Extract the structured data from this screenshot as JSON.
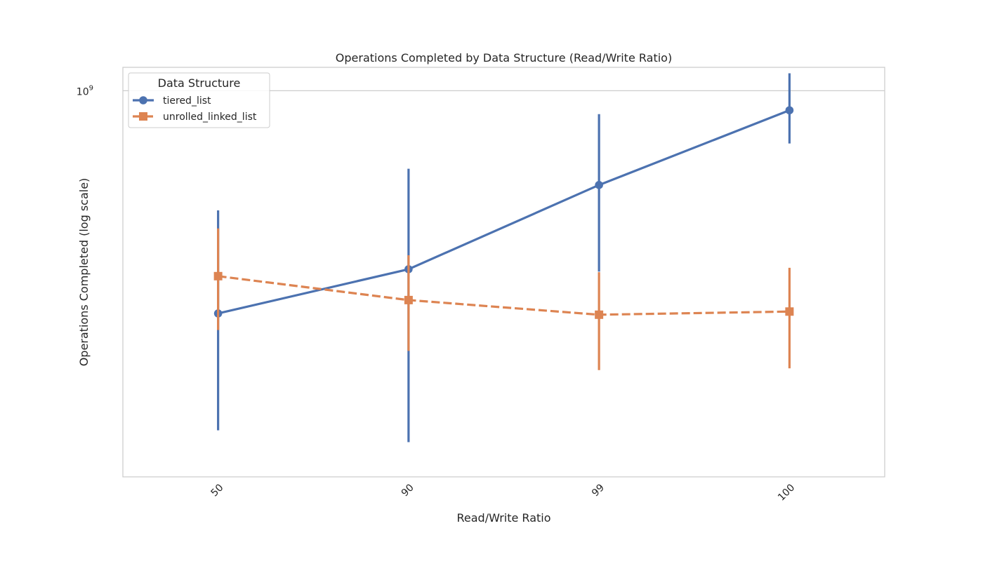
{
  "chart_data": {
    "type": "line",
    "title": "Operations Completed by Data Structure (Read/Write Ratio)",
    "xlabel": "Read/Write Ratio",
    "ylabel": "Operations Completed (log scale)",
    "x_scale": "categorical",
    "y_scale": "log",
    "categories": [
      "50",
      "90",
      "99",
      "100"
    ],
    "ylim": [
      100000000,
      1150000000
    ],
    "y_ticks": [
      {
        "value": 1000000000,
        "label": "10",
        "exponent": "9"
      }
    ],
    "grid": "y-major",
    "legend": {
      "title": "Data Structure",
      "placement": "upper-left"
    },
    "series": [
      {
        "name": "tiered_list",
        "color": "#4c72b0",
        "marker": "circle",
        "linestyle": "solid",
        "values": [
          265000000,
          345000000,
          570000000,
          890000000
        ],
        "ci_low": [
          132000000,
          123000000,
          340000000,
          730000000
        ],
        "ci_high": [
          490000000,
          628000000,
          870000000,
          1110000000
        ]
      },
      {
        "name": "unrolled_linked_list",
        "color": "#dd8452",
        "marker": "square",
        "linestyle": "dashed",
        "values": [
          331000000,
          287000000,
          263000000,
          268000000
        ],
        "ci_low": [
          240000000,
          212000000,
          189000000,
          191000000
        ],
        "ci_high": [
          440000000,
          375000000,
          339000000,
          348000000
        ]
      }
    ]
  }
}
